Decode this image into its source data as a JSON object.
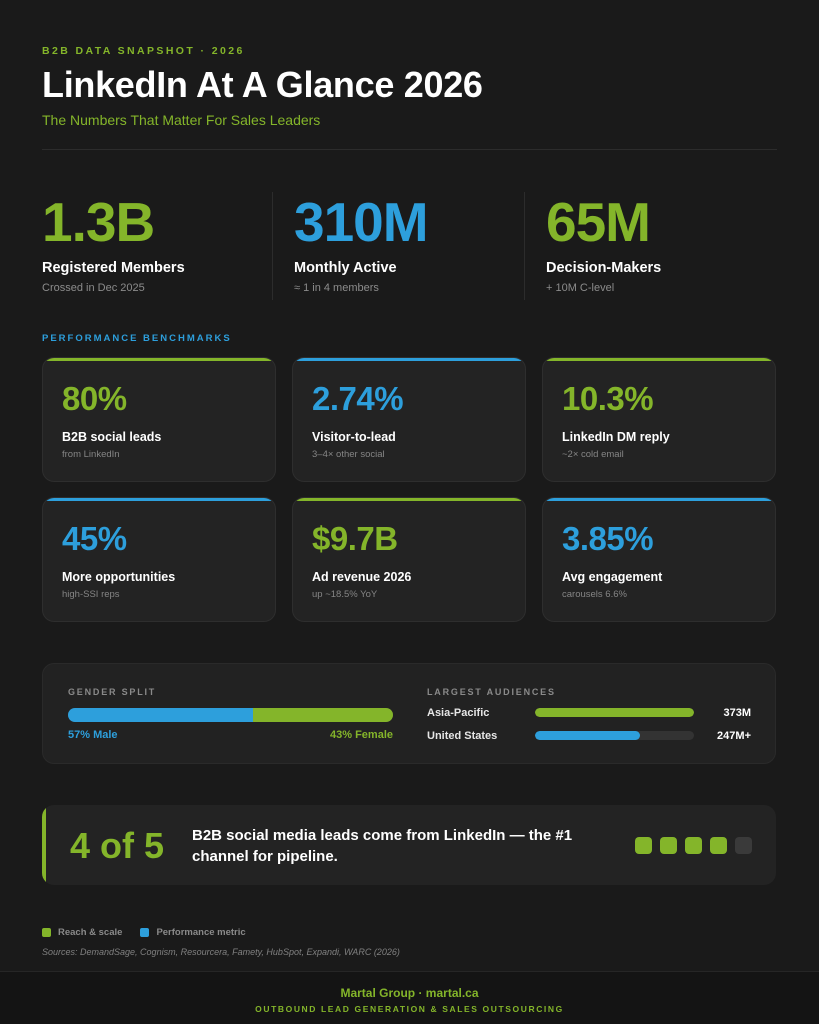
{
  "header": {
    "eyebrow": "B2B DATA SNAPSHOT · 2026",
    "title": "LinkedIn At A Glance 2026",
    "subtitle": "The Numbers That Matter For Sales Leaders"
  },
  "colors": {
    "green": "#84b52a",
    "blue": "#2d9fdc",
    "background": "#1a1a1a"
  },
  "hero_stats": [
    {
      "value": "1.3B",
      "label": "Registered Members",
      "sub": "Crossed in Dec 2025",
      "color": "green"
    },
    {
      "value": "310M",
      "label": "Monthly Active",
      "sub": "≈ 1 in 4 members",
      "color": "blue"
    },
    {
      "value": "65M",
      "label": "Decision-Makers",
      "sub": "+ 10M C-level",
      "color": "green"
    }
  ],
  "benchmarks": {
    "section_label": "PERFORMANCE BENCHMARKS",
    "cards": [
      {
        "value": "80%",
        "label": "B2B social leads",
        "sub": "from LinkedIn",
        "color": "green"
      },
      {
        "value": "2.74%",
        "label": "Visitor-to-lead",
        "sub": "3–4× other social",
        "color": "blue"
      },
      {
        "value": "10.3%",
        "label": "LinkedIn DM reply",
        "sub": "~2× cold email",
        "color": "green"
      },
      {
        "value": "45%",
        "label": "More opportunities",
        "sub": "high-SSI reps",
        "color": "blue"
      },
      {
        "value": "$9.7B",
        "label": "Ad revenue 2026",
        "sub": "up ~18.5% YoY",
        "color": "green"
      },
      {
        "value": "3.85%",
        "label": "Avg engagement",
        "sub": "carousels 6.6%",
        "color": "blue"
      }
    ]
  },
  "gender": {
    "label": "GENDER SPLIT",
    "male_pct": 57,
    "male_text": "57% Male",
    "female_text": "43% Female"
  },
  "audiences": {
    "label": "LARGEST AUDIENCES",
    "items": [
      {
        "name": "Asia-Pacific",
        "value": "373M",
        "fraction": 1.0,
        "color": "green"
      },
      {
        "name": "United States",
        "value": "247M+",
        "fraction": 0.66,
        "color": "blue"
      }
    ]
  },
  "callout": {
    "big": "4 of 5",
    "text": "B2B social media leads come from LinkedIn — the #1 channel for pipeline.",
    "filled": 4,
    "total": 5
  },
  "legend": [
    {
      "label": "Reach & scale",
      "color": "green"
    },
    {
      "label": "Performance metric",
      "color": "blue"
    }
  ],
  "sources": "Sources: DemandSage, Cognism, Resourcera, Famety, HubSpot, Expandi, WARC (2026)",
  "footer": {
    "brand": "Martal Group · martal.ca",
    "tagline": "OUTBOUND LEAD GENERATION & SALES OUTSOURCING"
  }
}
